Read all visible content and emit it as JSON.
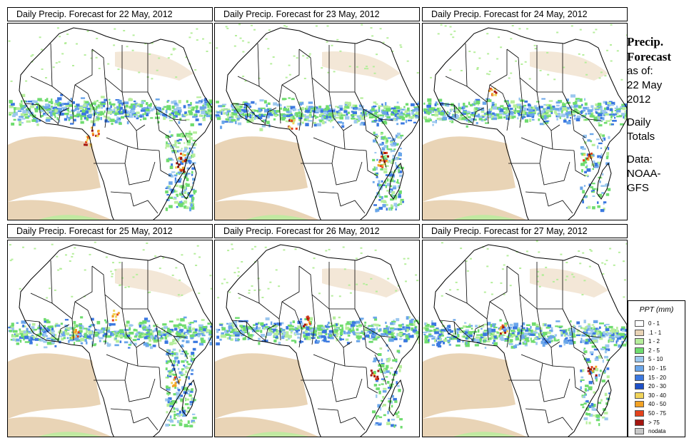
{
  "panels": [
    {
      "title": "Daily Precip. Forecast for  22 May, 2012"
    },
    {
      "title": "Daily Precip. Forecast for  23 May, 2012"
    },
    {
      "title": "Daily Precip. Forecast for  24 May, 2012"
    },
    {
      "title": "Daily Precip. Forecast for  25 May, 2012"
    },
    {
      "title": "Daily Precip. Forecast for  26 May, 2012"
    },
    {
      "title": "Daily Precip. Forecast for  27 May, 2012"
    }
  ],
  "side": {
    "title1": "Precip.",
    "title2": "Forecast",
    "asof": "as of:",
    "date1": "22 May",
    "date2": "2012",
    "daily1": "Daily",
    "daily2": "Totals",
    "data1": "Data:",
    "data2": "NOAA-",
    "data3": "GFS"
  },
  "legend": {
    "title": "PPT (mm)",
    "items": [
      {
        "label": "0 - 1",
        "color": "#ffffff"
      },
      {
        "label": ".1 - 1",
        "color": "#e9d4b6"
      },
      {
        "label": "1 - 2",
        "color": "#b6ee9c"
      },
      {
        "label": "2 - 5",
        "color": "#6fdc6f"
      },
      {
        "label": "5 - 10",
        "color": "#9cc8ef"
      },
      {
        "label": "10 - 15",
        "color": "#6aa6ea"
      },
      {
        "label": "15 - 20",
        "color": "#3b78e0"
      },
      {
        "label": "20 - 30",
        "color": "#1e50c8"
      },
      {
        "label": "30 - 40",
        "color": "#f1d45a"
      },
      {
        "label": "40 - 50",
        "color": "#f3a224"
      },
      {
        "label": "50 - 75",
        "color": "#e4421c"
      },
      {
        "label": "> 75",
        "color": "#a4140e"
      },
      {
        "label": "nodata",
        "color": "#c8c8c8"
      }
    ]
  }
}
